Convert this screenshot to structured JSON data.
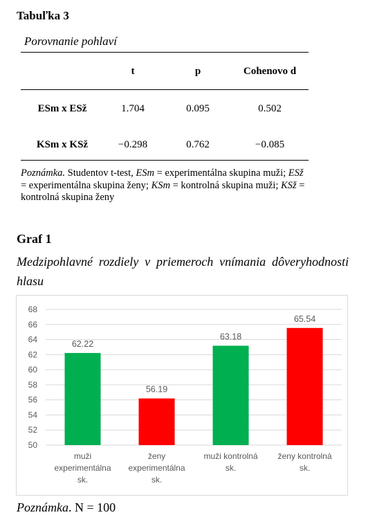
{
  "table": {
    "label": "Tabuľka 3",
    "title": "Porovnanie pohlaví",
    "headers": [
      "",
      "t",
      "p",
      "Cohenovo d"
    ],
    "rows": [
      [
        "ESm x ESž",
        "1.704",
        "0.095",
        "0.502"
      ],
      [
        "KSm x KSž",
        "−0.298",
        "0.762",
        "−0.085"
      ]
    ],
    "note": {
      "lead": "Poznámka.",
      "t1": " Studentov t-test, ",
      "a1": "ESm",
      "t2": " = experimentálna skupina muži; ",
      "a2": "ESž",
      "t3": " = experimentálna skupina ženy; ",
      "a3": "KSm",
      "t4": " = kontrolná skupina muži; ",
      "a4": "KSž",
      "t5": " = kontrolná skupina ženy"
    }
  },
  "graph": {
    "label": "Graf 1",
    "title": "Medzipohlavné rozdiely v priemeroch vnímania dôveryhodnosti hlasu",
    "note_lead": "Poznámka",
    "note_rest": ". N = 100"
  },
  "chart_data": {
    "type": "bar",
    "categories": [
      [
        "muži",
        "experimentálna",
        "sk."
      ],
      [
        "ženy",
        "experimentálna",
        "sk."
      ],
      [
        "muži kontrolná",
        "sk."
      ],
      [
        "ženy kontrolná",
        "sk."
      ]
    ],
    "values": [
      62.22,
      56.19,
      63.18,
      65.54
    ],
    "value_labels": [
      "62.22",
      "56.19",
      "63.18",
      "65.54"
    ],
    "colors": [
      "#00b050",
      "#ff0000",
      "#00b050",
      "#ff0000"
    ],
    "ylim": [
      50,
      68
    ],
    "yticks": [
      50,
      52,
      54,
      56,
      58,
      60,
      62,
      64,
      66,
      68
    ],
    "grid": true,
    "colors_meta": {
      "grid": "#d9d9d9",
      "text": "#595959"
    }
  }
}
